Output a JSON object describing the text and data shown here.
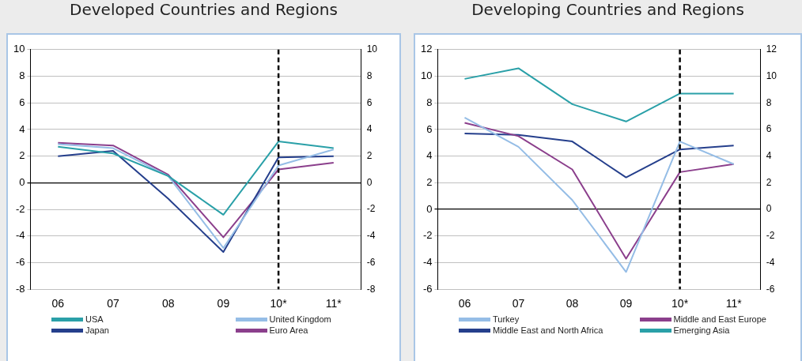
{
  "chart_data": [
    {
      "type": "line",
      "title": "Developed Countries and Regions",
      "categories": [
        "06",
        "07",
        "08",
        "09",
        "10*",
        "11*"
      ],
      "series": [
        {
          "name": "USA",
          "color": "#2aa0a8",
          "values": [
            2.7,
            2.2,
            0.5,
            -2.4,
            3.1,
            2.6
          ]
        },
        {
          "name": "United Kingdom",
          "color": "#95bde6",
          "values": [
            2.9,
            2.6,
            0.5,
            -4.9,
            1.3,
            2.5
          ]
        },
        {
          "name": "Japan",
          "color": "#253f8c",
          "values": [
            2.0,
            2.4,
            -1.2,
            -5.2,
            1.9,
            2.0
          ]
        },
        {
          "name": "Euro Area",
          "color": "#8b3f8c",
          "values": [
            3.0,
            2.8,
            0.6,
            -4.1,
            1.0,
            1.5
          ]
        }
      ],
      "ylim": [
        -8,
        10
      ],
      "yticks": [
        -8,
        -6,
        -4,
        -2,
        0,
        2,
        4,
        6,
        8,
        10
      ],
      "y2lim": [
        -8,
        10
      ],
      "y2ticks": [
        -8,
        -6,
        -4,
        -2,
        0,
        2,
        4,
        6,
        8,
        10
      ],
      "ref_lines": [
        {
          "axis": "x",
          "value": "10*",
          "color": "#000000",
          "line_style": "dashed"
        }
      ],
      "grid": "y",
      "legend": "bottom",
      "marker": "none",
      "line_style": "solid"
    },
    {
      "type": "line",
      "title": "Developing Countries and Regions",
      "categories": [
        "06",
        "07",
        "08",
        "09",
        "10*",
        "11*"
      ],
      "series": [
        {
          "name": "Turkey",
          "color": "#95bde6",
          "values": [
            6.9,
            4.7,
            0.7,
            -4.7,
            5.1,
            3.4
          ]
        },
        {
          "name": "Middle and East Europe",
          "color": "#8b3f8c",
          "values": [
            6.5,
            5.5,
            3.0,
            -3.7,
            2.8,
            3.4
          ]
        },
        {
          "name": "Middle East and North Africa",
          "color": "#253f8c",
          "values": [
            5.7,
            5.6,
            5.1,
            2.4,
            4.5,
            4.8
          ]
        },
        {
          "name": "Emerging Asia",
          "color": "#2aa0a8",
          "values": [
            9.8,
            10.6,
            7.9,
            6.6,
            8.7,
            8.7
          ]
        }
      ],
      "ylim": [
        -6,
        12
      ],
      "yticks": [
        -6,
        -4,
        -2,
        0,
        2,
        4,
        6,
        8,
        10,
        12
      ],
      "y2lim": [
        -6,
        12
      ],
      "y2ticks": [
        -6,
        -4,
        -2,
        0,
        2,
        4,
        6,
        8,
        10,
        12
      ],
      "ref_lines": [
        {
          "axis": "x",
          "value": "10*",
          "color": "#000000",
          "line_style": "dashed"
        }
      ],
      "grid": "y",
      "legend": "bottom",
      "marker": "none",
      "line_style": "solid"
    }
  ]
}
